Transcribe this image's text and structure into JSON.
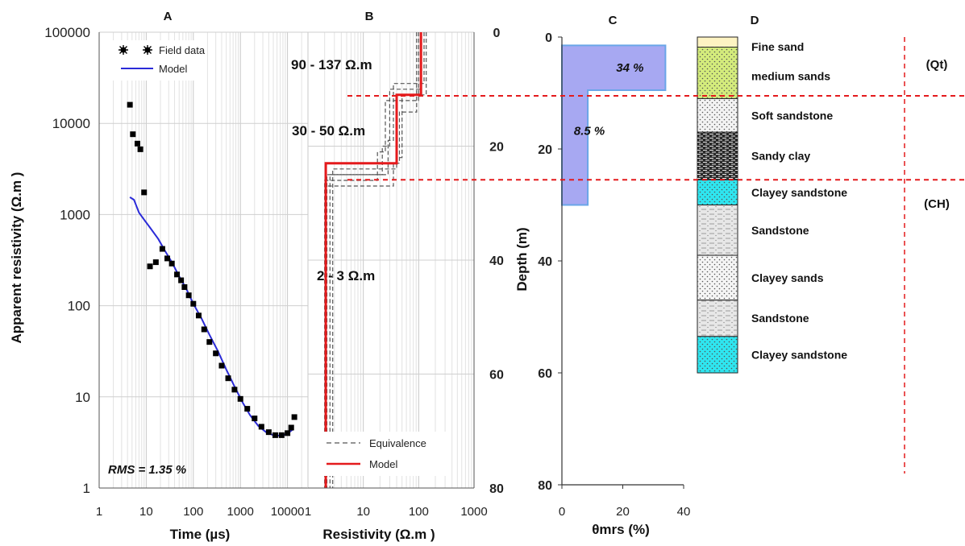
{
  "chart_data": [
    {
      "panel_label": "A",
      "type": "scatter",
      "xlabel": "Time (µs)",
      "ylabel": "Apparent resistivity (Ω.m )",
      "xscale": "log",
      "yscale": "log",
      "xlim": [
        1,
        100000
      ],
      "ylim": [
        1,
        100000
      ],
      "x_ticks": [
        "1",
        "10",
        "100",
        "1000",
        "10000"
      ],
      "y_ticks": [
        "1",
        "10",
        "100",
        "1000",
        "10000",
        "100000"
      ],
      "grid": true,
      "legend_position": "top-left",
      "annotation": "RMS = 1.35 %",
      "series": [
        {
          "name": "Field data",
          "style": "markers",
          "color": "#000000",
          "points": [
            [
              4.5,
              16000
            ],
            [
              5.2,
              7600
            ],
            [
              6.5,
              6000
            ],
            [
              7.5,
              5200
            ],
            [
              9,
              1750
            ],
            [
              12,
              270
            ],
            [
              16,
              300
            ],
            [
              22,
              420
            ],
            [
              28,
              330
            ],
            [
              35,
              290
            ],
            [
              45,
              220
            ],
            [
              55,
              190
            ],
            [
              65,
              160
            ],
            [
              80,
              130
            ],
            [
              100,
              105
            ],
            [
              130,
              78
            ],
            [
              170,
              55
            ],
            [
              220,
              40
            ],
            [
              300,
              30
            ],
            [
              400,
              22
            ],
            [
              550,
              16
            ],
            [
              750,
              12
            ],
            [
              1000,
              9.5
            ],
            [
              1400,
              7.4
            ],
            [
              2000,
              5.8
            ],
            [
              2800,
              4.7
            ],
            [
              4000,
              4.1
            ],
            [
              5500,
              3.8
            ],
            [
              7500,
              3.8
            ],
            [
              10000,
              4.0
            ],
            [
              12000,
              4.6
            ],
            [
              14000,
              6.0
            ]
          ]
        },
        {
          "name": "Model",
          "style": "line",
          "color": "#2b2bd8",
          "points": [
            [
              4.5,
              1550
            ],
            [
              5.5,
              1450
            ],
            [
              7,
              1050
            ],
            [
              9,
              880
            ],
            [
              12,
              720
            ],
            [
              18,
              540
            ],
            [
              25,
              400
            ],
            [
              35,
              300
            ],
            [
              50,
              210
            ],
            [
              70,
              155
            ],
            [
              100,
              105
            ],
            [
              150,
              72
            ],
            [
              220,
              48
            ],
            [
              330,
              32
            ],
            [
              500,
              20
            ],
            [
              750,
              13
            ],
            [
              1100,
              8.8
            ],
            [
              1600,
              6.3
            ],
            [
              2400,
              4.8
            ],
            [
              3500,
              4.1
            ],
            [
              5000,
              3.8
            ],
            [
              7000,
              3.75
            ],
            [
              9000,
              3.85
            ],
            [
              11000,
              4.1
            ],
            [
              13000,
              4.4
            ]
          ]
        }
      ]
    },
    {
      "panel_label": "B",
      "type": "line",
      "xlabel": "Resistivity (Ω.m )",
      "ylabel": "",
      "xscale": "log",
      "xlim": [
        1,
        1000
      ],
      "ylim": [
        80,
        0
      ],
      "x_ticks": [
        "1",
        "10",
        "100",
        "1000"
      ],
      "y_ticks": [
        "0",
        "20",
        "40",
        "60",
        "80"
      ],
      "grid": true,
      "legend_position": "bottom-left",
      "annotations": [
        "90 - 137 Ω.m",
        "30 - 50 Ω.m",
        "2 - 3 Ω.m"
      ],
      "series": [
        {
          "name": "Equivalence",
          "style": "dashed",
          "color": "#555555",
          "paths": [
            [
              [
                100,
                0
              ],
              [
                100,
                12
              ],
              [
                25,
                12
              ],
              [
                25,
                21
              ],
              [
                18,
                21
              ],
              [
                18,
                26
              ],
              [
                2,
                26
              ],
              [
                2,
                80
              ]
            ],
            [
              [
                110,
                0
              ],
              [
                110,
                10
              ],
              [
                30,
                10
              ],
              [
                30,
                20
              ],
              [
                22,
                20
              ],
              [
                22,
                25
              ],
              [
                2.2,
                25
              ],
              [
                2.2,
                80
              ]
            ],
            [
              [
                125,
                0
              ],
              [
                125,
                9
              ],
              [
                35,
                9
              ],
              [
                35,
                19
              ],
              [
                28,
                19
              ],
              [
                28,
                25
              ],
              [
                2.5,
                25
              ],
              [
                2.5,
                80
              ]
            ],
            [
              [
                137,
                0
              ],
              [
                137,
                11
              ],
              [
                50,
                11
              ],
              [
                50,
                22
              ],
              [
                40,
                22
              ],
              [
                40,
                24
              ],
              [
                2.8,
                24
              ],
              [
                2.8,
                80
              ]
            ],
            [
              [
                92,
                0
              ],
              [
                92,
                14
              ],
              [
                45,
                14
              ],
              [
                45,
                23
              ],
              [
                35,
                23
              ],
              [
                35,
                27
              ],
              [
                2.1,
                27
              ],
              [
                2.1,
                80
              ]
            ]
          ]
        },
        {
          "name": "Model",
          "style": "solid",
          "color": "#e41a1c",
          "points": [
            [
              110,
              0
            ],
            [
              110,
              11
            ],
            [
              40,
              11
            ],
            [
              40,
              23
            ],
            [
              2.1,
              23
            ],
            [
              2.1,
              80
            ]
          ]
        }
      ]
    },
    {
      "panel_label": "C",
      "type": "area",
      "xlabel": "θmrs (%)",
      "ylabel": "Depth (m)",
      "xlim": [
        0,
        40
      ],
      "ylim": [
        80,
        0
      ],
      "x_ticks": [
        "0",
        "20",
        "40"
      ],
      "y_ticks": [
        "0",
        "20",
        "40",
        "60",
        "80"
      ],
      "grid": false,
      "series": [
        {
          "style": "fill",
          "color": "#a7a8f2",
          "edge_color": "#6aa6e8",
          "layers": [
            {
              "top": 1.5,
              "bottom": 9.5,
              "value": 34,
              "label": "34 %"
            },
            {
              "top": 9.5,
              "bottom": 30,
              "value": 8.5,
              "label": "8.5 %"
            }
          ]
        }
      ]
    }
  ],
  "lithology": {
    "panel_label": "D",
    "layers": [
      {
        "top": 0,
        "bottom": 1.8,
        "color": "#fdf3c2",
        "label": "Fine sand",
        "pattern": "plain"
      },
      {
        "top": 1.8,
        "bottom": 11,
        "color": "#d4ec7c",
        "label": "medium sands",
        "pattern": "dots"
      },
      {
        "top": 11,
        "bottom": 17,
        "color": "#f3f3f3",
        "label": "Soft sandstone",
        "pattern": "dots"
      },
      {
        "top": 17,
        "bottom": 25.5,
        "color": "#2a2a2a",
        "label": "Sandy clay",
        "pattern": "dash"
      },
      {
        "top": 25.5,
        "bottom": 30,
        "color": "#2ee6f0",
        "label": "Clayey sandstone",
        "pattern": "dots"
      },
      {
        "top": 30,
        "bottom": 39,
        "color": "#e7e7e7",
        "label": "Sandstone",
        "pattern": "dash"
      },
      {
        "top": 39,
        "bottom": 47,
        "color": "#f5f5f5",
        "label": "Clayey sands",
        "pattern": "dots"
      },
      {
        "top": 47,
        "bottom": 53.5,
        "color": "#e7e7e7",
        "label": "Sandstone",
        "pattern": "dash"
      },
      {
        "top": 53.5,
        "bottom": 60,
        "color": "#2ee6f0",
        "label": "Clayey sandstone",
        "pattern": "dots"
      }
    ],
    "units": [
      {
        "label": "(Qt)",
        "boundary_depth": 10.5
      },
      {
        "label": "(CH)",
        "boundary_depth": 25.5
      }
    ],
    "boundary_color": "#e41a1c"
  }
}
